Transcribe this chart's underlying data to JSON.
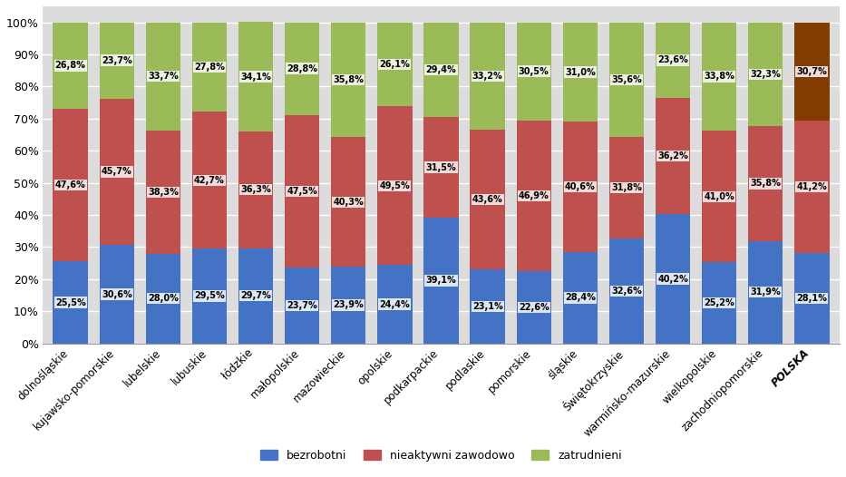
{
  "categories": [
    "dolnośląskie",
    "kujawsko-pomorskie",
    "lubelskie",
    "lubuskie",
    "łódzkie",
    "małopolskie",
    "mazowieckie",
    "opolskie",
    "podkarpackie",
    "podlaskie",
    "pomorskie",
    "śląskie",
    "Świętokrzyskie",
    "warmińsko-mazurskie",
    "wielkopolskie",
    "zachodniopomorskie",
    "POLSKA"
  ],
  "bezrobotni": [
    25.5,
    30.6,
    28.0,
    29.5,
    29.7,
    23.7,
    23.9,
    24.4,
    39.1,
    23.1,
    22.6,
    28.4,
    32.6,
    40.2,
    25.2,
    31.9,
    28.1
  ],
  "nieaktywni": [
    47.6,
    45.7,
    38.3,
    42.7,
    36.3,
    47.5,
    40.3,
    49.5,
    31.5,
    43.6,
    46.9,
    40.6,
    31.8,
    36.2,
    41.0,
    35.8,
    41.2
  ],
  "zatrudnieni": [
    26.8,
    23.7,
    33.7,
    27.8,
    34.1,
    28.8,
    35.8,
    26.1,
    29.4,
    33.2,
    30.5,
    31.0,
    35.6,
    23.6,
    33.8,
    32.3,
    30.7
  ],
  "color_bezrobotni": "#4472C4",
  "color_nieaktywni": "#C0504D",
  "color_zatrudnieni_normal": "#9BBB59",
  "color_zatrudnieni_polska": "#833C00",
  "bg_bezrobotni": "#DCE6F1",
  "bg_nieaktywni": "#F2DCDB",
  "bg_zatrudnieni": "#EBF1DE",
  "bg_polska_top": "#F2DCDB",
  "legend_labels": [
    "bezrobotni",
    "nieaktywni zawodowo",
    "zatrudnieni"
  ],
  "figsize": [
    9.33,
    5.26
  ],
  "dpi": 100
}
